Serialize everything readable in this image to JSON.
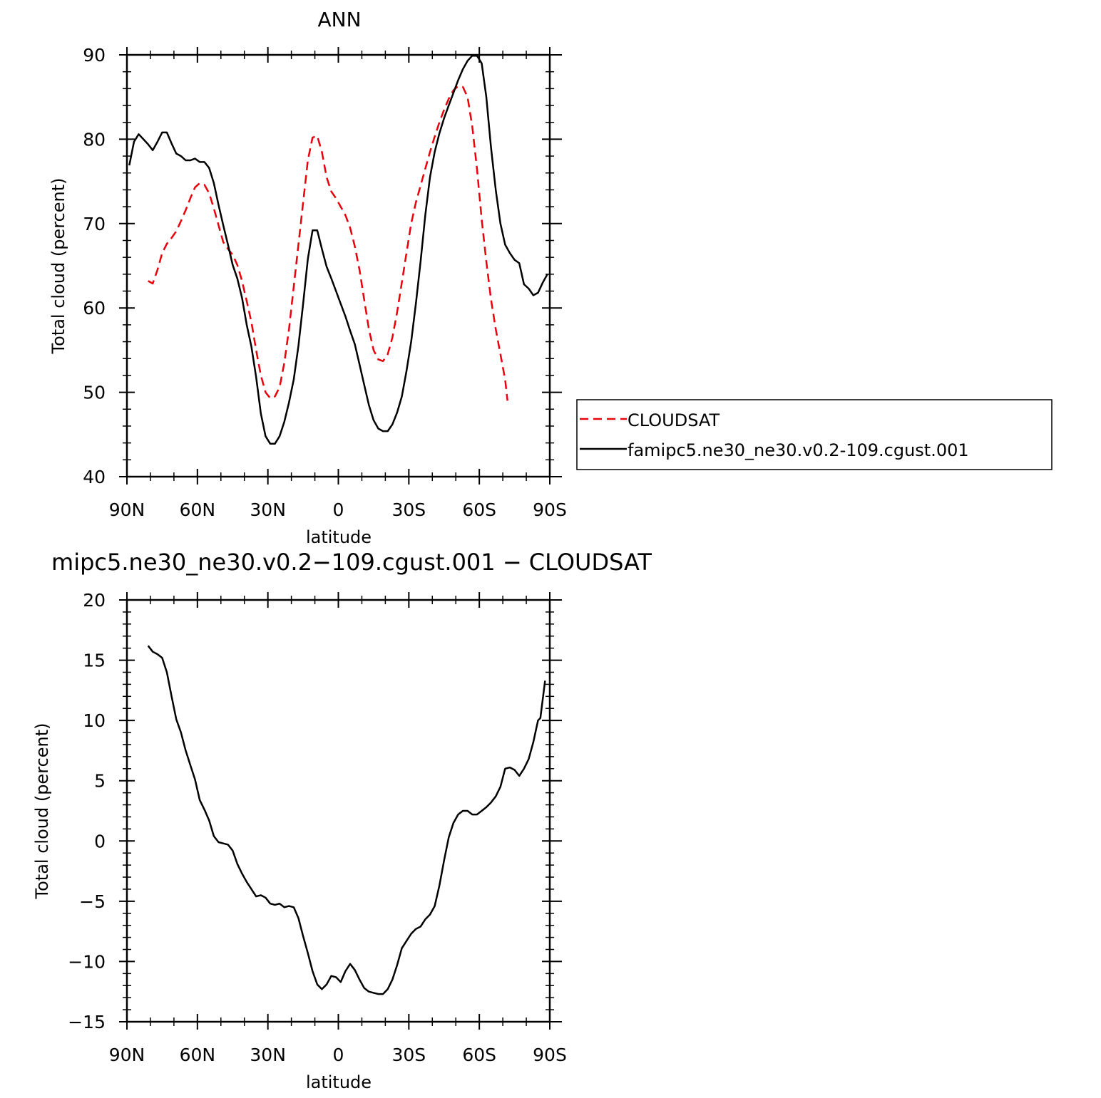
{
  "chart_data": [
    {
      "type": "line",
      "title": "ANN",
      "xlabel": "latitude",
      "ylabel": "Total cloud (percent)",
      "xlim": [
        -90,
        90
      ],
      "ylim": [
        40,
        90
      ],
      "x_ticks": [
        -90,
        -60,
        -30,
        0,
        30,
        60,
        90
      ],
      "x_tick_labels": [
        "90N",
        "60N",
        "30N",
        "0",
        "30S",
        "60S",
        "90S"
      ],
      "y_ticks": [
        40,
        50,
        60,
        70,
        80,
        90
      ],
      "y_tick_labels": [
        "40",
        "50",
        "60",
        "70",
        "80",
        "90"
      ],
      "legend_position": "right",
      "series": [
        {
          "name": "CLOUDSAT",
          "color": "#e8000b",
          "dash": "dashed",
          "points": [
            [
              -81,
              63.2
            ],
            [
              -79,
              62.9
            ],
            [
              -77,
              64.5
            ],
            [
              -75,
              66.5
            ],
            [
              -73,
              67.6
            ],
            [
              -71,
              68.3
            ],
            [
              -69,
              69.1
            ],
            [
              -67,
              70.3
            ],
            [
              -65,
              71.6
            ],
            [
              -63,
              73.0
            ],
            [
              -61,
              74.3
            ],
            [
              -59,
              74.8
            ],
            [
              -57,
              74.6
            ],
            [
              -55,
              73.6
            ],
            [
              -53,
              71.8
            ],
            [
              -51,
              69.8
            ],
            [
              -49,
              67.8
            ],
            [
              -47,
              67.0
            ],
            [
              -45,
              66.3
            ],
            [
              -43,
              65.1
            ],
            [
              -41,
              63.2
            ],
            [
              -39,
              60.8
            ],
            [
              -37,
              58.3
            ],
            [
              -35,
              55.0
            ],
            [
              -33,
              52.0
            ],
            [
              -31,
              50.0
            ],
            [
              -29,
              49.3
            ],
            [
              -27,
              49.5
            ],
            [
              -25,
              50.6
            ],
            [
              -23,
              53.5
            ],
            [
              -21,
              57.5
            ],
            [
              -19,
              62.5
            ],
            [
              -17,
              67.5
            ],
            [
              -15,
              72.5
            ],
            [
              -13,
              77.5
            ],
            [
              -11,
              80.2
            ],
            [
              -9,
              80.4
            ],
            [
              -7,
              78.5
            ],
            [
              -5,
              75.5
            ],
            [
              -3,
              73.8
            ],
            [
              -1,
              73.0
            ],
            [
              1,
              72.0
            ],
            [
              3,
              71.0
            ],
            [
              5,
              69.5
            ],
            [
              7,
              67.3
            ],
            [
              9,
              64.5
            ],
            [
              11,
              61.0
            ],
            [
              13,
              57.5
            ],
            [
              15,
              55.0
            ],
            [
              17,
              53.9
            ],
            [
              19,
              53.7
            ],
            [
              21,
              54.5
            ],
            [
              23,
              56.5
            ],
            [
              25,
              59.5
            ],
            [
              27,
              63.0
            ],
            [
              29,
              66.5
            ],
            [
              31,
              70.0
            ],
            [
              33,
              72.5
            ],
            [
              35,
              74.5
            ],
            [
              37,
              76.5
            ],
            [
              39,
              78.5
            ],
            [
              41,
              80.3
            ],
            [
              43,
              82.0
            ],
            [
              45,
              83.5
            ],
            [
              47,
              84.8
            ],
            [
              49,
              85.8
            ],
            [
              51,
              86.3
            ],
            [
              53,
              86.2
            ],
            [
              55,
              85.0
            ],
            [
              57,
              81.5
            ],
            [
              59,
              76.5
            ],
            [
              61,
              70.5
            ],
            [
              63,
              65.5
            ],
            [
              65,
              61.0
            ],
            [
              67,
              57.5
            ],
            [
              69,
              54.5
            ],
            [
              71,
              51.5
            ],
            [
              72,
              49.0
            ]
          ]
        },
        {
          "name": "famipc5.ne30_ne30.v0.2-109.cgust.001",
          "color": "#000000",
          "dash": "solid",
          "points": [
            [
              -89,
              76.9
            ],
            [
              -87,
              79.7
            ],
            [
              -85,
              80.6
            ],
            [
              -83,
              80.0
            ],
            [
              -81,
              79.4
            ],
            [
              -79,
              78.7
            ],
            [
              -77,
              79.7
            ],
            [
              -75,
              80.8
            ],
            [
              -73,
              80.8
            ],
            [
              -71,
              79.5
            ],
            [
              -69,
              78.3
            ],
            [
              -67,
              78.0
            ],
            [
              -65,
              77.5
            ],
            [
              -63,
              77.5
            ],
            [
              -61,
              77.7
            ],
            [
              -59,
              77.3
            ],
            [
              -57,
              77.3
            ],
            [
              -55,
              76.6
            ],
            [
              -53,
              74.8
            ],
            [
              -51,
              72.2
            ],
            [
              -49,
              69.8
            ],
            [
              -47,
              67.5
            ],
            [
              -45,
              65.1
            ],
            [
              -43,
              63.5
            ],
            [
              -41,
              61.2
            ],
            [
              -39,
              58.0
            ],
            [
              -37,
              55.4
            ],
            [
              -35,
              51.8
            ],
            [
              -33,
              47.5
            ],
            [
              -31,
              44.8
            ],
            [
              -29,
              43.9
            ],
            [
              -27,
              43.9
            ],
            [
              -25,
              44.8
            ],
            [
              -23,
              46.5
            ],
            [
              -21,
              48.8
            ],
            [
              -19,
              51.5
            ],
            [
              -17,
              55.5
            ],
            [
              -15,
              60.5
            ],
            [
              -13,
              65.8
            ],
            [
              -11,
              69.2
            ],
            [
              -9,
              69.2
            ],
            [
              -7,
              67.0
            ],
            [
              -5,
              64.9
            ],
            [
              -3,
              63.5
            ],
            [
              -1,
              62.0
            ],
            [
              1,
              60.5
            ],
            [
              3,
              59.0
            ],
            [
              5,
              57.3
            ],
            [
              7,
              55.7
            ],
            [
              9,
              53.3
            ],
            [
              11,
              50.9
            ],
            [
              13,
              48.5
            ],
            [
              15,
              46.7
            ],
            [
              17,
              45.7
            ],
            [
              19,
              45.4
            ],
            [
              21,
              45.4
            ],
            [
              23,
              46.2
            ],
            [
              25,
              47.6
            ],
            [
              27,
              49.5
            ],
            [
              29,
              52.5
            ],
            [
              31,
              56.0
            ],
            [
              33,
              60.5
            ],
            [
              35,
              65.5
            ],
            [
              37,
              71.0
            ],
            [
              39,
              75.5
            ],
            [
              41,
              78.5
            ],
            [
              43,
              80.7
            ],
            [
              45,
              82.5
            ],
            [
              47,
              84.0
            ],
            [
              49,
              85.5
            ],
            [
              51,
              87.0
            ],
            [
              53,
              88.3
            ],
            [
              55,
              89.3
            ],
            [
              57,
              89.9
            ],
            [
              59,
              89.9
            ],
            [
              61,
              89.0
            ],
            [
              63,
              85.0
            ],
            [
              65,
              79.0
            ],
            [
              67,
              74.0
            ],
            [
              69,
              70.0
            ],
            [
              71,
              67.5
            ],
            [
              73,
              66.5
            ],
            [
              75,
              65.7
            ],
            [
              77,
              65.3
            ],
            [
              79,
              62.8
            ],
            [
              81,
              62.3
            ],
            [
              83,
              61.5
            ],
            [
              85,
              61.8
            ],
            [
              87,
              63.0
            ],
            [
              89,
              64.0
            ]
          ]
        }
      ]
    },
    {
      "type": "line",
      "title": "mipc5.ne30_ne30.v0.2−109.cgust.001 − CLOUDSAT",
      "xlabel": "latitude",
      "ylabel": "Total cloud (percent)",
      "xlim": [
        -90,
        90
      ],
      "ylim": [
        -15,
        20
      ],
      "x_ticks": [
        -90,
        -60,
        -30,
        0,
        30,
        60,
        90
      ],
      "x_tick_labels": [
        "90N",
        "60N",
        "30N",
        "0",
        "30S",
        "60S",
        "90S"
      ],
      "y_ticks": [
        -15,
        -10,
        -5,
        0,
        5,
        10,
        15,
        20
      ],
      "y_tick_labels": [
        "−15",
        "−10",
        "−5",
        "0",
        "5",
        "10",
        "15",
        "20"
      ],
      "series": [
        {
          "color": "#000000",
          "dash": "solid",
          "points": [
            [
              -81,
              16.2
            ],
            [
              -79,
              15.7
            ],
            [
              -77,
              15.5
            ],
            [
              -75,
              15.2
            ],
            [
              -73,
              14.0
            ],
            [
              -71,
              12.0
            ],
            [
              -69,
              10.1
            ],
            [
              -67,
              9.0
            ],
            [
              -65,
              7.5
            ],
            [
              -63,
              6.3
            ],
            [
              -61,
              5.1
            ],
            [
              -59,
              3.4
            ],
            [
              -57,
              2.6
            ],
            [
              -55,
              1.7
            ],
            [
              -53,
              0.4
            ],
            [
              -51,
              -0.1
            ],
            [
              -49,
              -0.2
            ],
            [
              -47,
              -0.3
            ],
            [
              -45,
              -0.8
            ],
            [
              -43,
              -1.9
            ],
            [
              -41,
              -2.7
            ],
            [
              -39,
              -3.4
            ],
            [
              -37,
              -4.0
            ],
            [
              -35,
              -4.6
            ],
            [
              -33,
              -4.5
            ],
            [
              -31,
              -4.7
            ],
            [
              -29,
              -5.2
            ],
            [
              -27,
              -5.3
            ],
            [
              -25,
              -5.2
            ],
            [
              -23,
              -5.5
            ],
            [
              -21,
              -5.4
            ],
            [
              -19,
              -5.5
            ],
            [
              -17,
              -6.4
            ],
            [
              -15,
              -7.9
            ],
            [
              -13,
              -9.3
            ],
            [
              -11,
              -10.8
            ],
            [
              -9,
              -11.9
            ],
            [
              -7,
              -12.3
            ],
            [
              -5,
              -11.9
            ],
            [
              -3,
              -11.2
            ],
            [
              -1,
              -11.3
            ],
            [
              1,
              -11.7
            ],
            [
              3,
              -10.8
            ],
            [
              5,
              -10.2
            ],
            [
              7,
              -10.7
            ],
            [
              9,
              -11.5
            ],
            [
              11,
              -12.2
            ],
            [
              13,
              -12.5
            ],
            [
              15,
              -12.6
            ],
            [
              17,
              -12.7
            ],
            [
              19,
              -12.7
            ],
            [
              21,
              -12.3
            ],
            [
              23,
              -11.5
            ],
            [
              25,
              -10.3
            ],
            [
              27,
              -8.9
            ],
            [
              29,
              -8.3
            ],
            [
              31,
              -7.7
            ],
            [
              33,
              -7.3
            ],
            [
              35,
              -7.1
            ],
            [
              37,
              -6.5
            ],
            [
              39,
              -6.1
            ],
            [
              41,
              -5.4
            ],
            [
              43,
              -3.7
            ],
            [
              45,
              -1.6
            ],
            [
              47,
              0.3
            ],
            [
              49,
              1.5
            ],
            [
              51,
              2.2
            ],
            [
              53,
              2.5
            ],
            [
              55,
              2.5
            ],
            [
              57,
              2.2
            ],
            [
              59,
              2.2
            ],
            [
              61,
              2.5
            ],
            [
              63,
              2.8
            ],
            [
              65,
              3.2
            ],
            [
              67,
              3.7
            ],
            [
              69,
              4.5
            ],
            [
              71,
              6.0
            ],
            [
              73,
              6.1
            ],
            [
              75,
              5.9
            ],
            [
              77,
              5.4
            ],
            [
              79,
              6.0
            ],
            [
              81,
              6.8
            ],
            [
              83,
              8.2
            ],
            [
              85,
              10.0
            ],
            [
              86,
              10.2
            ],
            [
              88,
              13.3
            ]
          ]
        }
      ]
    }
  ]
}
